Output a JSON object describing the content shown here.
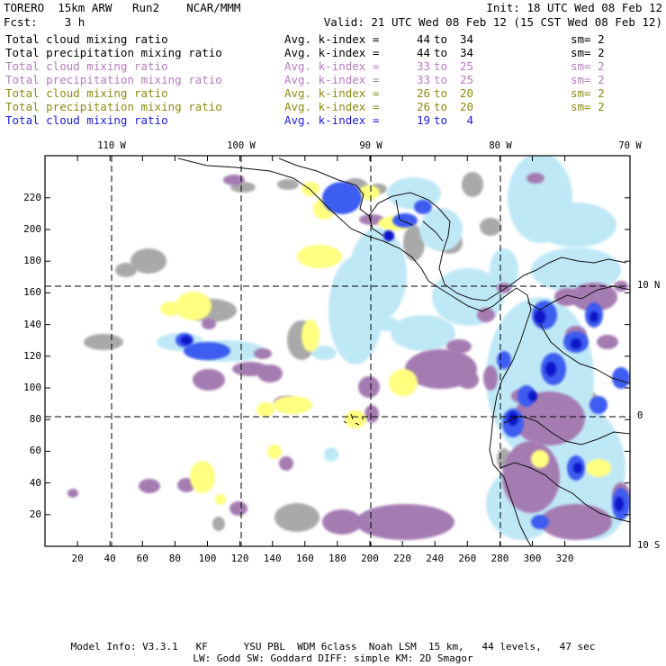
{
  "header": {
    "model": "TORERO  15km ARW   Run2    NCAR/MMM",
    "init": "Init: 18 UTC Wed 08 Feb 12",
    "fcst": "Fcst:    3 h",
    "valid": "Valid: 21 UTC Wed 08 Feb 12 (15 CST Wed 08 Feb 12)"
  },
  "legend": [
    {
      "label": "Total cloud mixing ratio",
      "avg": "Avg. k-index =",
      "from": "44",
      "to": "to",
      "until": "34",
      "sm": "sm= 2",
      "color": "#000000"
    },
    {
      "label": "Total precipitation mixing ratio",
      "avg": "Avg. k-index =",
      "from": "44",
      "to": "to",
      "until": "34",
      "sm": "sm= 2",
      "color": "#000000"
    },
    {
      "label": "Total cloud mixing ratio",
      "avg": "Avg. k-index =",
      "from": "33",
      "to": "to",
      "until": "25",
      "sm": "sm= 2",
      "color": "#b77bc0"
    },
    {
      "label": "Total precipitation mixing ratio",
      "avg": "Avg. k-index =",
      "from": "33",
      "to": "to",
      "until": "25",
      "sm": "sm= 2",
      "color": "#b77bc0"
    },
    {
      "label": "Total cloud mixing ratio",
      "avg": "Avg. k-index =",
      "from": "26",
      "to": "to",
      "until": "20",
      "sm": "sm= 2",
      "color": "#8f8a14"
    },
    {
      "label": "Total precipitation mixing ratio",
      "avg": "Avg. k-index =",
      "from": "26",
      "to": "to",
      "until": "20",
      "sm": "sm= 2",
      "color": "#8f8a14"
    },
    {
      "label": "Total cloud mixing ratio",
      "avg": "Avg. k-index =",
      "from": "19",
      "to": "to",
      "until": "4",
      "sm": "",
      "color": "#1a1adc"
    }
  ],
  "map": {
    "lon_labels": [
      "110 W",
      "100 W",
      "90 W",
      "80 W",
      "70 W"
    ],
    "lat_labels": [
      "10 N",
      "0",
      "10 S"
    ],
    "x_ticks": [
      "20",
      "40",
      "60",
      "80",
      "100",
      "120",
      "140",
      "160",
      "180",
      "200",
      "220",
      "240",
      "260",
      "280",
      "300",
      "320"
    ],
    "y_ticks": [
      "220",
      "200",
      "180",
      "160",
      "140",
      "120",
      "100",
      "80",
      "60",
      "40",
      "20"
    ],
    "colors": {
      "grey": "#a9a9a9",
      "purple": "#a57cb2",
      "yellow": "#ffff80",
      "light_blue": "#bfe8f6",
      "blue": "#3d5bf0",
      "dark_blue": "#0a14c8"
    }
  },
  "footer": {
    "line1": "Model Info: V3.3.1   KF      YSU PBL  WDM 6class  Noah LSM  15 km,   44 levels,   47 sec",
    "line2": "LW: Godd SW: Goddard DIFF: simple KM: 2D Smagor"
  }
}
